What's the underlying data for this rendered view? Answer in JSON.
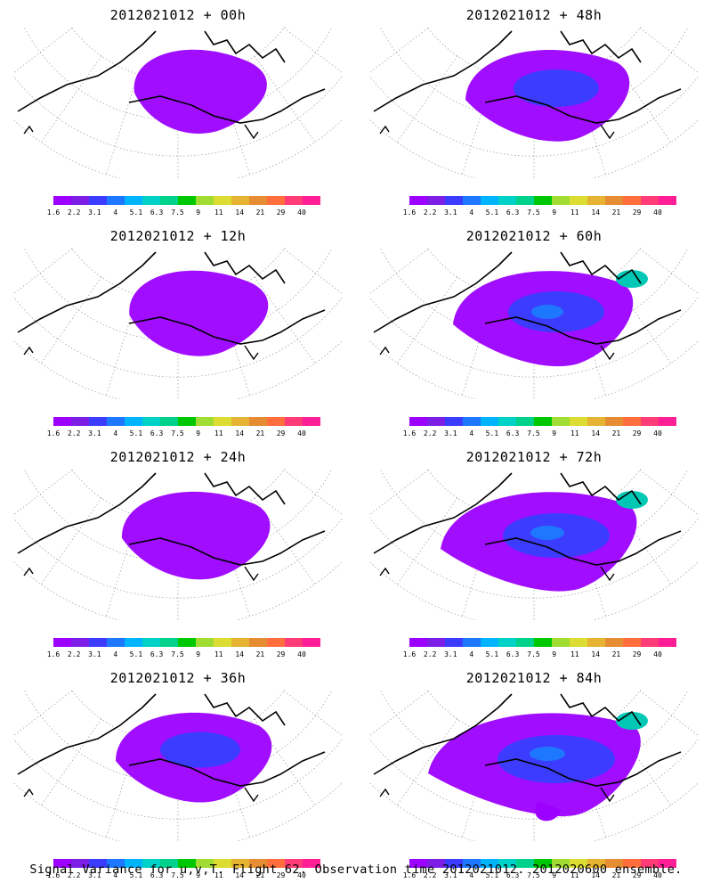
{
  "panels": [
    {
      "title": "2012021012 + 00h",
      "level": 1
    },
    {
      "title": "2012021012 + 48h",
      "level": 3
    },
    {
      "title": "2012021012 + 12h",
      "level": 1.4
    },
    {
      "title": "2012021012 + 60h",
      "level": 4
    },
    {
      "title": "2012021012 + 24h",
      "level": 2
    },
    {
      "title": "2012021012 + 72h",
      "level": 5
    },
    {
      "title": "2012021012 + 36h",
      "level": 2.5
    },
    {
      "title": "2012021012 + 84h",
      "level": 6
    }
  ],
  "colorbar": {
    "labels": [
      "1.6",
      "2.2",
      "3.1",
      "4",
      "5.1",
      "6.3",
      "7.5",
      "9",
      "11",
      "14",
      "21",
      "29",
      "40"
    ],
    "colors": [
      "#9c00ff",
      "#7d1ee6",
      "#3c3cff",
      "#1e78ff",
      "#00b4ff",
      "#00d2c8",
      "#00d28c",
      "#00c800",
      "#a0dc32",
      "#dcdc32",
      "#e6b432",
      "#e68c32",
      "#ff6e3c",
      "#ff3c78",
      "#ff1e96"
    ]
  },
  "caption": "Signal Variance for u,v,T. Flight 62. Observation time 2012021012. 2012020600 ensemble."
}
